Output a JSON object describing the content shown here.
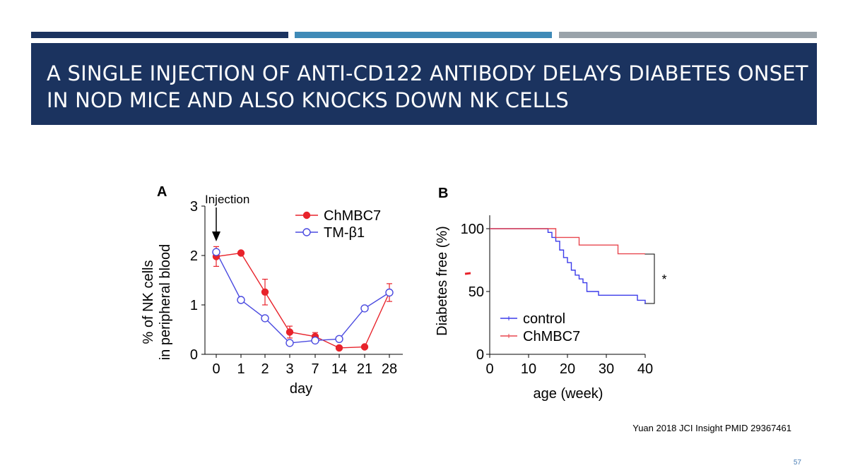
{
  "slide": {
    "title": "A single injection of anti-CD122 antibody delays diabetes onset in NOD mice and also knocks down NK cells",
    "citation": "Yuan 2018 JCI Insight PMID 29367461",
    "page_number": "57",
    "colors": {
      "title_bg": "#1b335f",
      "bar1": "#1b335f",
      "bar2": "#3f8ab7",
      "bar3": "#9aa3aa",
      "page_number": "#4a7eb5"
    }
  },
  "chart_data": [
    {
      "type": "line",
      "panel": "A",
      "ylabel": "% of NK cells in peripheral blood",
      "xlabel": "day",
      "categories": [
        "0",
        "1",
        "2",
        "3",
        "7",
        "14",
        "21",
        "28"
      ],
      "ylim": [
        0,
        3
      ],
      "yticks": [
        "0",
        "1",
        "2",
        "3"
      ],
      "annotation": "Injection",
      "legend_position": "top-right",
      "series": [
        {
          "name": "ChMBC7",
          "color": "#e8232b",
          "marker": "filled-circle",
          "values": [
            1.98,
            2.05,
            1.26,
            0.45,
            0.36,
            0.13,
            0.15,
            1.25
          ],
          "error": [
            0.2,
            0.03,
            0.26,
            0.12,
            0.08,
            0.03,
            0.03,
            0.18
          ]
        },
        {
          "name": "TM-β1",
          "color": "#4a4ae0",
          "marker": "open-circle",
          "values": [
            2.07,
            1.1,
            0.73,
            0.23,
            0.28,
            0.31,
            0.93,
            1.25
          ],
          "error": [
            0,
            0,
            0,
            0,
            0,
            0,
            0,
            0
          ]
        }
      ]
    },
    {
      "type": "line",
      "panel": "B",
      "step": true,
      "ylabel": "Diabetes free (%)",
      "xlabel": "age (week)",
      "xlim": [
        0,
        40
      ],
      "ylim": [
        0,
        100
      ],
      "xticks": [
        "0",
        "10",
        "20",
        "30",
        "40"
      ],
      "yticks": [
        "0",
        "50",
        "100"
      ],
      "significance": "*",
      "legend_position": "bottom-left",
      "series": [
        {
          "name": "control",
          "color": "#3b3bea",
          "x": [
            0,
            15,
            16,
            17,
            18,
            19,
            20,
            21,
            22,
            23,
            24,
            25,
            28,
            38,
            40
          ],
          "y": [
            100,
            97,
            93,
            90,
            83,
            77,
            73,
            67,
            63,
            60,
            57,
            50,
            47,
            43,
            40
          ]
        },
        {
          "name": "ChMBC7",
          "color": "#e8474f",
          "x": [
            0,
            17,
            23,
            33,
            40
          ],
          "y": [
            100,
            93,
            87,
            80,
            80
          ]
        }
      ]
    }
  ]
}
